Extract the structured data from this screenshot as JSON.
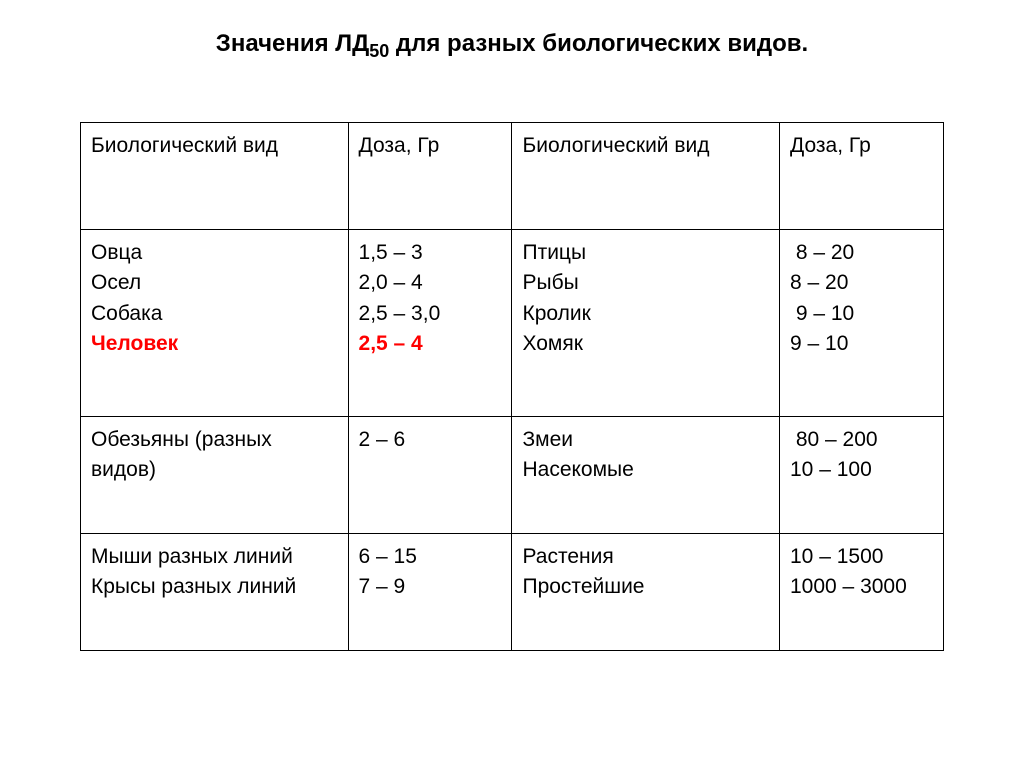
{
  "title_prefix": "Значения ЛД",
  "title_sub": "50",
  "title_suffix": " для разных биологических видов.",
  "headers": {
    "species": "Биологический вид",
    "dose": "Доза, Гр"
  },
  "rows": [
    {
      "left_species": [
        {
          "text": "Овца",
          "highlight": false
        },
        {
          "text": "Осел",
          "highlight": false
        },
        {
          "text": "Собака",
          "highlight": false
        },
        {
          "text": "Человек",
          "highlight": true
        }
      ],
      "left_dose": [
        {
          "text": "1,5 – 3",
          "highlight": false
        },
        {
          "text": "2,0 – 4",
          "highlight": false
        },
        {
          "text": "2,5 – 3,0",
          "highlight": false
        },
        {
          "text": "2,5 – 4",
          "highlight": true
        }
      ],
      "right_species": [
        {
          "text": "Птицы",
          "highlight": false
        },
        {
          "text": "Рыбы",
          "highlight": false
        },
        {
          "text": "Кролик",
          "highlight": false
        },
        {
          "text": "Хомяк",
          "highlight": false
        }
      ],
      "right_dose": [
        {
          "text": " 8 – 20",
          "highlight": false
        },
        {
          "text": "8 – 20",
          "highlight": false
        },
        {
          "text": " 9 – 10",
          "highlight": false
        },
        {
          "text": "9 – 10",
          "highlight": false
        }
      ],
      "klass": "row-a"
    },
    {
      "left_species": [
        {
          "text": "Обезьяны (разных видов)",
          "highlight": false
        }
      ],
      "left_dose": [
        {
          "text": "2 – 6",
          "highlight": false
        }
      ],
      "right_species": [
        {
          "text": "Змеи",
          "highlight": false
        },
        {
          "text": "Насекомые",
          "highlight": false
        }
      ],
      "right_dose": [
        {
          "text": " 80 – 200",
          "highlight": false
        },
        {
          "text": "10 – 100",
          "highlight": false
        }
      ],
      "klass": "row-b"
    },
    {
      "left_species": [
        {
          "text": "Мыши разных линий",
          "highlight": false
        },
        {
          "text": "Крысы разных линий",
          "highlight": false
        }
      ],
      "left_dose": [
        {
          "text": "6 – 15",
          "highlight": false
        },
        {
          "text": "7 – 9",
          "highlight": false
        }
      ],
      "right_species": [
        {
          "text": "Растения",
          "highlight": false
        },
        {
          "text": "Простейшие",
          "highlight": false
        }
      ],
      "right_dose": [
        {
          "text": "10 – 1500",
          "highlight": false
        },
        {
          "text": "1000 – 3000",
          "highlight": false
        }
      ],
      "klass": "row-c"
    }
  ]
}
